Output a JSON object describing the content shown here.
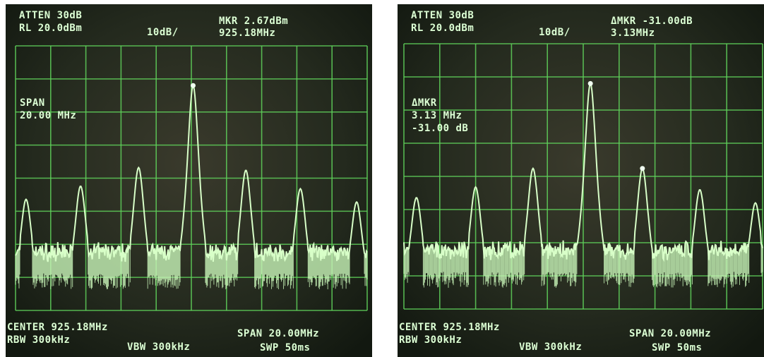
{
  "screens": [
    {
      "header": {
        "atten": "ATTEN 30dB",
        "ref_level": "RL 20.0dBm",
        "scale": "10dB/",
        "marker": "MKR 2.67dBm",
        "marker_freq": "925.18MHz"
      },
      "annotation": [
        "SPAN",
        "20.00 MHz"
      ],
      "footer": {
        "center": "CENTER 925.18MHz",
        "rbw": "RBW 300kHz",
        "vbw": "VBW 300kHz",
        "span": "SPAN 20.00MHz",
        "sweep": "SWP 50ms"
      }
    },
    {
      "header": {
        "atten": "ATTEN 30dB",
        "ref_level": "RL 20.0dBm",
        "scale": "10dB/",
        "marker": "ΔMKR -31.00dB",
        "marker_freq": "3.13MHz"
      },
      "annotation": [
        "ΔMKR",
        "3.13 MHz",
        "-31.00 dB"
      ],
      "footer": {
        "center": "CENTER 925.18MHz",
        "rbw": "RBW 300kHz",
        "vbw": "VBW 300kHz",
        "span": "SPAN 20.00MHz",
        "sweep": "SWP 50ms"
      }
    }
  ]
}
